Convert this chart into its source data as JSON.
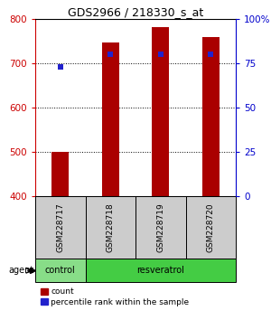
{
  "title": "GDS2966 / 218330_s_at",
  "samples": [
    "GSM228717",
    "GSM228718",
    "GSM228719",
    "GSM228720"
  ],
  "bar_bottom": 400,
  "bar_tops": [
    500,
    748,
    783,
    760
  ],
  "percentile_values": [
    693,
    720,
    720,
    720
  ],
  "ylim_left": [
    400,
    800
  ],
  "ylim_right": [
    0,
    100
  ],
  "yticks_left": [
    400,
    500,
    600,
    700,
    800
  ],
  "yticks_right": [
    0,
    25,
    50,
    75,
    100
  ],
  "ytick_labels_right": [
    "0",
    "25",
    "50",
    "75",
    "100%"
  ],
  "bar_color": "#aa0000",
  "percentile_color": "#2222cc",
  "bar_width": 0.35,
  "groups": [
    {
      "label": "control",
      "indices": [
        0
      ],
      "color": "#88dd88"
    },
    {
      "label": "resveratrol",
      "indices": [
        1,
        2,
        3
      ],
      "color": "#44cc44"
    }
  ],
  "agent_label": "agent",
  "legend_count_label": "count",
  "legend_pct_label": "percentile rank within the sample",
  "sample_box_color": "#cccccc",
  "left_axis_color": "#cc0000",
  "right_axis_color": "#0000cc"
}
